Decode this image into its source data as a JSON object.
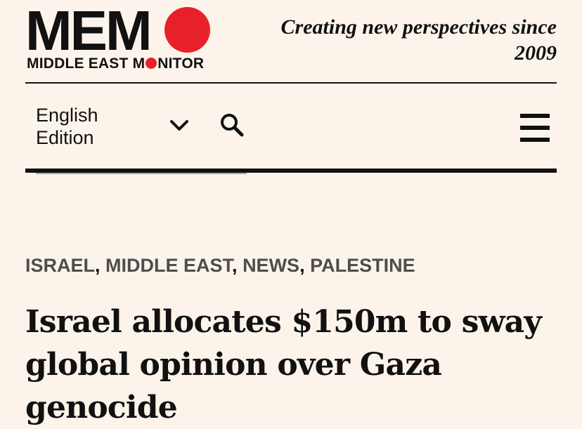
{
  "logo": {
    "wordmark": "MEM",
    "subtitle_part1": "MIDDLE EAST M",
    "subtitle_part2": "NITOR",
    "dot_color": "#e8202a"
  },
  "tagline": "Creating new perspectives since 2009",
  "nav": {
    "edition_label": "English Edition",
    "chevron_icon": "chevron-down-icon",
    "search_icon": "search-icon",
    "menu_icon": "hamburger-menu-icon"
  },
  "article": {
    "categories": [
      "ISRAEL",
      "MIDDLE EAST",
      "NEWS",
      "PALESTINE"
    ],
    "separator": ", ",
    "headline": "Israel allocates $150m to sway global opinion over Gaza genocide"
  }
}
